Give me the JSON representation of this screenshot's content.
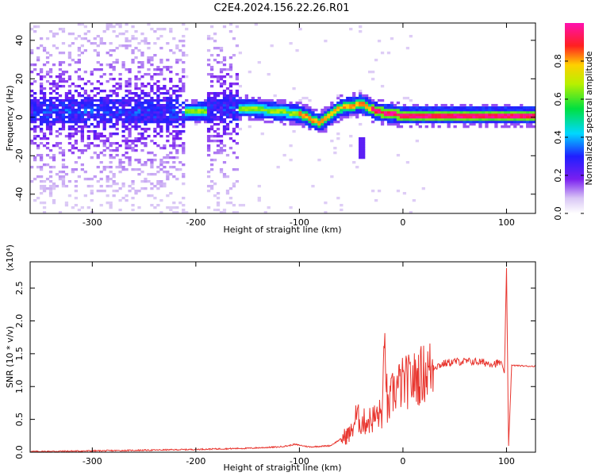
{
  "chart_data": [
    {
      "id": "spectrogram",
      "type": "heatmap",
      "title": "C2E4.2024.156.22.26.R01",
      "xlabel": "Height of straight line (km)",
      "ylabel": "Frequency (Hz)",
      "xlim": [
        -360,
        128
      ],
      "ylim": [
        -50,
        49
      ],
      "xticks": [
        -300,
        -200,
        -100,
        0,
        100
      ],
      "yticks": [
        -40,
        -20,
        0,
        20,
        40
      ],
      "ytick_labels": [
        "-40",
        "-20",
        "0",
        "20",
        "40"
      ],
      "colorbar": {
        "label": "Normalized spectral amplitude",
        "range": [
          0,
          1
        ],
        "ticks": [
          0.0,
          0.2,
          0.4,
          0.6,
          0.8
        ],
        "tick_labels": [
          "0.0",
          "0.2",
          "0.4",
          "0.6",
          "0.8"
        ],
        "colormap": "rainbow (white → violet → blue → cyan → green → yellow → red → magenta)"
      },
      "features": {
        "broadband_noise_x_range": [
          -360,
          -160
        ],
        "gap_x_range": [
          -210,
          -190
        ],
        "narrow_line_center_hz": [
          [
            -210,
            3
          ],
          [
            -200,
            3
          ],
          [
            -150,
            5
          ],
          [
            -120,
            3
          ],
          [
            -100,
            2
          ],
          [
            -80,
            -3
          ],
          [
            -60,
            5
          ],
          [
            -40,
            7
          ],
          [
            -25,
            3
          ],
          [
            0,
            1
          ],
          [
            50,
            1
          ],
          [
            100,
            1
          ],
          [
            128,
            1
          ]
        ],
        "spur_near_x": -40,
        "spur_freq_range": [
          -22,
          -10
        ]
      }
    },
    {
      "id": "snr",
      "type": "line",
      "xlabel": "Height of straight line (km)",
      "ylabel": "SNR (10 * v/v)",
      "y_multiplier": "(x10⁴)",
      "xlim": [
        -360,
        128
      ],
      "ylim": [
        0,
        2.9
      ],
      "xticks": [
        -300,
        -200,
        -100,
        0,
        100
      ],
      "yticks": [
        0.0,
        0.5,
        1.0,
        1.5,
        2.0,
        2.5
      ],
      "ytick_labels": [
        "0.0",
        "0.5",
        "1.0",
        "1.5",
        "2.0",
        "2.5"
      ],
      "series_color": "#e8362f",
      "series": [
        {
          "x": [
            -360,
            -300,
            -250,
            -210,
            -180,
            -150,
            -120,
            -110,
            -105,
            -90,
            -70,
            -60,
            -50,
            -45,
            -40,
            -30,
            -20,
            -17,
            -15,
            -10,
            -5,
            0,
            10,
            20,
            30,
            40,
            50,
            60,
            70,
            80,
            90,
            95,
            98,
            100,
            102,
            105,
            110,
            120,
            128
          ],
          "y": [
            0.01,
            0.02,
            0.03,
            0.04,
            0.05,
            0.06,
            0.08,
            0.1,
            0.12,
            0.08,
            0.1,
            0.2,
            0.3,
            0.55,
            0.45,
            0.5,
            0.6,
            1.75,
            0.6,
            0.9,
            1.0,
            1.05,
            1.1,
            1.2,
            1.3,
            1.35,
            1.38,
            1.38,
            1.38,
            1.36,
            1.35,
            1.37,
            1.2,
            2.8,
            0.1,
            1.32,
            1.32,
            1.31,
            1.31
          ]
        }
      ]
    }
  ],
  "axis_multiplier_text": "(x10⁴)"
}
